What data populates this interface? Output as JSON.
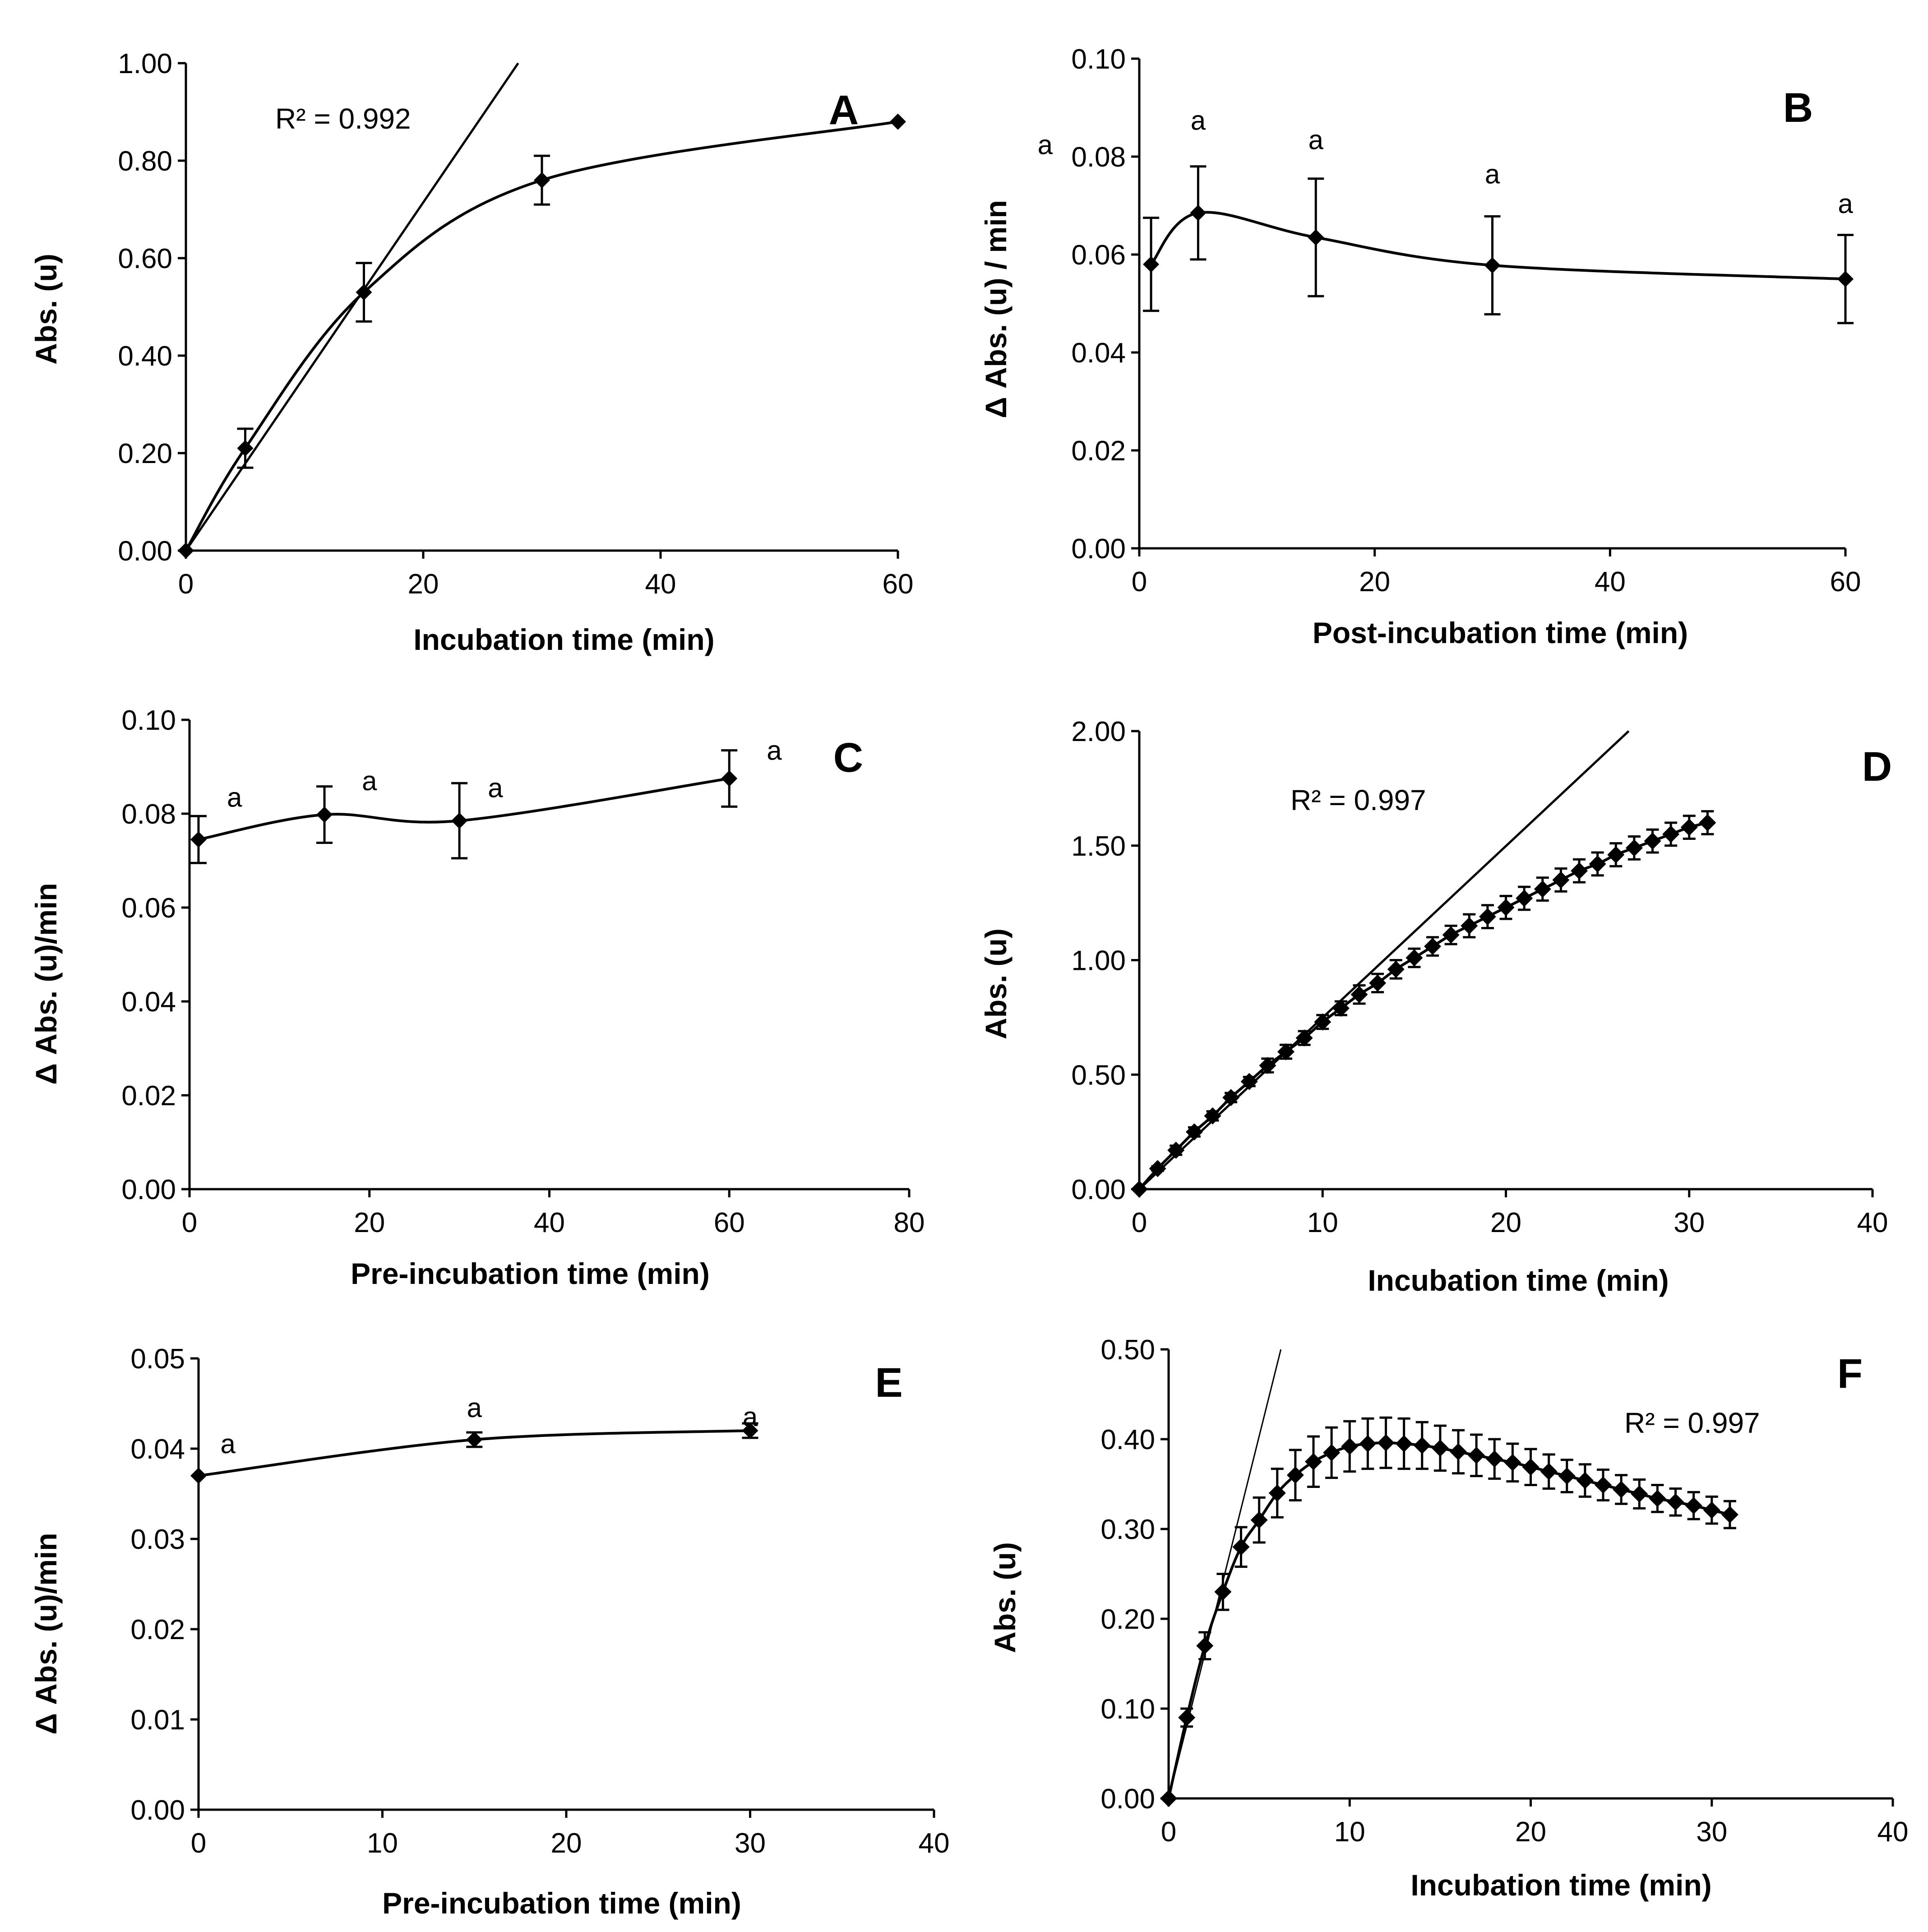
{
  "colors": {
    "ink": "#000000",
    "background": "#ffffff"
  },
  "chart_data": [
    {
      "id": "A",
      "type": "scatter",
      "panel_label": "A",
      "xlabel": "Incubation time (min)",
      "ylabel": "Abs. (u)",
      "xlim": [
        0,
        60
      ],
      "ylim": [
        0,
        1.0
      ],
      "x_ticks": [
        "0",
        "20",
        "40",
        "60"
      ],
      "y_ticks": [
        "0.00",
        "0.20",
        "0.40",
        "0.60",
        "0.80",
        "1.00"
      ],
      "series": [
        {
          "name": "Abs",
          "x": [
            0,
            5,
            15,
            30,
            60
          ],
          "y": [
            0.0,
            0.21,
            0.53,
            0.76,
            0.88
          ],
          "err": [
            0,
            0.04,
            0.06,
            0.05,
            0
          ]
        }
      ],
      "trend": {
        "x0": 0,
        "y0": 0.0,
        "x1": 28,
        "y1": 1.0
      },
      "r2_label": "R² = 0.992",
      "letters": []
    },
    {
      "id": "B",
      "type": "scatter",
      "panel_label": "B",
      "xlabel": "Post-incubation time (min)",
      "ylabel": "Δ Abs. (u) / min",
      "xlim": [
        0,
        60
      ],
      "ylim": [
        0,
        0.1
      ],
      "x_ticks": [
        "0",
        "20",
        "40",
        "60"
      ],
      "y_ticks": [
        "0.00",
        "0.02",
        "0.04",
        "0.06",
        "0.08",
        "0.10"
      ],
      "series": [
        {
          "name": "Rate",
          "x": [
            1,
            5,
            15,
            30,
            60
          ],
          "y": [
            0.058,
            0.0685,
            0.0635,
            0.0578,
            0.055
          ],
          "err": [
            0.0095,
            0.0095,
            0.012,
            0.01,
            0.009
          ]
        }
      ],
      "trend": null,
      "r2_label": "",
      "letters": [
        "a",
        "a",
        "a",
        "a",
        "a"
      ]
    },
    {
      "id": "C",
      "type": "scatter",
      "panel_label": "C",
      "xlabel": "Pre-incubation time (min)",
      "ylabel": "Δ Abs. (u)/min",
      "xlim": [
        0,
        80
      ],
      "ylim": [
        0,
        0.1
      ],
      "x_ticks": [
        "0",
        "20",
        "40",
        "60",
        "80"
      ],
      "y_ticks": [
        "0.00",
        "0.02",
        "0.04",
        "0.06",
        "0.08",
        "0.10"
      ],
      "series": [
        {
          "name": "Rate",
          "x": [
            1,
            15,
            30,
            60
          ],
          "y": [
            0.0745,
            0.0798,
            0.0785,
            0.0875
          ],
          "err": [
            0.005,
            0.006,
            0.008,
            0.006
          ]
        }
      ],
      "trend": null,
      "r2_label": "",
      "letters": [
        "a",
        "a",
        "a",
        "a"
      ]
    },
    {
      "id": "D",
      "type": "scatter",
      "panel_label": "D",
      "xlabel": "Incubation time (min)",
      "ylabel": "Abs. (u)",
      "xlim": [
        0,
        40
      ],
      "ylim": [
        0,
        2.0
      ],
      "x_ticks": [
        "0",
        "10",
        "20",
        "30",
        "40"
      ],
      "y_ticks": [
        "0.00",
        "0.50",
        "1.00",
        "1.50",
        "2.00"
      ],
      "series": [
        {
          "name": "Abs",
          "x": [
            0,
            1,
            2,
            3,
            4,
            5,
            6,
            7,
            8,
            9,
            10,
            11,
            12,
            13,
            14,
            15,
            16,
            17,
            18,
            19,
            20,
            21,
            22,
            23,
            24,
            25,
            26,
            27,
            28,
            29,
            30,
            31
          ],
          "y": [
            0.0,
            0.09,
            0.17,
            0.25,
            0.32,
            0.4,
            0.47,
            0.54,
            0.6,
            0.66,
            0.73,
            0.79,
            0.85,
            0.9,
            0.96,
            1.01,
            1.06,
            1.11,
            1.15,
            1.19,
            1.23,
            1.27,
            1.31,
            1.35,
            1.39,
            1.42,
            1.46,
            1.49,
            1.52,
            1.55,
            1.58,
            1.6
          ],
          "err": [
            0,
            0.01,
            0.02,
            0.02,
            0.02,
            0.02,
            0.02,
            0.03,
            0.03,
            0.03,
            0.03,
            0.03,
            0.04,
            0.04,
            0.04,
            0.04,
            0.04,
            0.04,
            0.05,
            0.05,
            0.05,
            0.05,
            0.05,
            0.05,
            0.05,
            0.05,
            0.05,
            0.05,
            0.05,
            0.05,
            0.05,
            0.05
          ]
        }
      ],
      "trend": {
        "x0": 0,
        "y0": 0.0,
        "x1": 26.7,
        "y1": 2.0
      },
      "r2_label": "R² = 0.997",
      "letters": []
    },
    {
      "id": "E",
      "type": "scatter",
      "panel_label": "E",
      "xlabel": "Pre-incubation time (min)",
      "ylabel": "Δ Abs. (u)/min",
      "xlim": [
        0,
        40
      ],
      "ylim": [
        0,
        0.05
      ],
      "x_ticks": [
        "0",
        "10",
        "20",
        "30",
        "40"
      ],
      "y_ticks": [
        "0.00",
        "0.01",
        "0.02",
        "0.03",
        "0.04",
        "0.05"
      ],
      "series": [
        {
          "name": "Rate",
          "x": [
            0,
            15,
            30
          ],
          "y": [
            0.037,
            0.041,
            0.042
          ],
          "err": [
            0,
            0.0008,
            0.0008
          ]
        }
      ],
      "trend": null,
      "r2_label": "",
      "letters": [
        "a",
        "a",
        "a"
      ]
    },
    {
      "id": "F",
      "type": "scatter",
      "panel_label": "F",
      "xlabel": "Incubation time (min)",
      "ylabel": "Abs. (u)",
      "xlim": [
        0,
        40
      ],
      "ylim": [
        0,
        0.5
      ],
      "x_ticks": [
        "0",
        "10",
        "20",
        "30",
        "40"
      ],
      "y_ticks": [
        "0.00",
        "0.10",
        "0.20",
        "0.30",
        "0.40",
        "0.50"
      ],
      "series": [
        {
          "name": "Abs",
          "x": [
            0,
            1,
            2,
            3,
            4,
            5,
            6,
            7,
            8,
            9,
            10,
            11,
            12,
            13,
            14,
            15,
            16,
            17,
            18,
            19,
            20,
            21,
            22,
            23,
            24,
            25,
            26,
            27,
            28,
            29,
            30,
            31
          ],
          "y": [
            0.0,
            0.09,
            0.17,
            0.23,
            0.28,
            0.31,
            0.34,
            0.36,
            0.375,
            0.385,
            0.392,
            0.395,
            0.396,
            0.395,
            0.393,
            0.39,
            0.386,
            0.382,
            0.378,
            0.374,
            0.369,
            0.364,
            0.359,
            0.354,
            0.349,
            0.344,
            0.339,
            0.334,
            0.33,
            0.326,
            0.321,
            0.316
          ],
          "err": [
            0,
            0.01,
            0.015,
            0.02,
            0.022,
            0.025,
            0.027,
            0.028,
            0.028,
            0.028,
            0.028,
            0.028,
            0.028,
            0.028,
            0.026,
            0.025,
            0.024,
            0.023,
            0.022,
            0.021,
            0.02,
            0.019,
            0.018,
            0.018,
            0.017,
            0.016,
            0.016,
            0.015,
            0.015,
            0.015,
            0.015,
            0.015
          ]
        }
      ],
      "trend": {
        "x0": 0,
        "y0": 0.0,
        "x1": 6.2,
        "y1": 0.5
      },
      "r2_label": "R²  = 0.997",
      "letters": []
    }
  ]
}
